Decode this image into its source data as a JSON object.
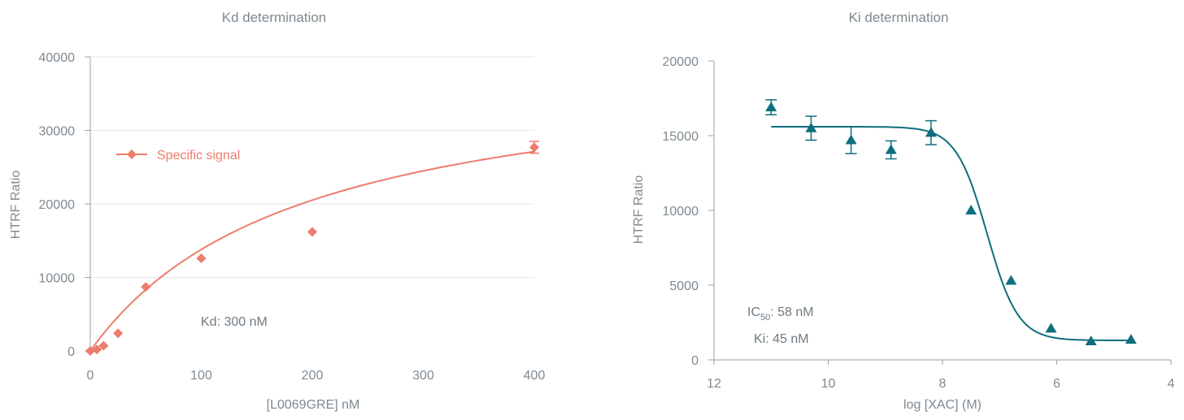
{
  "chart_data": [
    {
      "type": "scatter",
      "title": "Kd determination",
      "xlabel": "[L0069GRE] nM",
      "ylabel": "HTRF Ratio",
      "xlim": [
        0,
        400
      ],
      "ylim": [
        0,
        40000
      ],
      "xticks": [
        0,
        100,
        200,
        300,
        400
      ],
      "yticks": [
        0,
        10000,
        20000,
        30000,
        40000
      ],
      "grid": "horizontal",
      "legend_position": "upper-left",
      "color": "#ec7c6c",
      "series": [
        {
          "name": "Specific signal",
          "x": [
            0,
            6,
            12,
            25,
            50,
            100,
            200,
            400
          ],
          "y": [
            0,
            200,
            700,
            2400,
            8700,
            12600,
            16200,
            27700
          ],
          "error": [
            0,
            0,
            0,
            0,
            0,
            0,
            0,
            800
          ],
          "fit": "one-site saturation"
        }
      ],
      "annotations": [
        {
          "text": "Kd: 300 nM"
        }
      ]
    },
    {
      "type": "scatter",
      "title": "Ki determination",
      "xlabel": "log [XAC] (M)",
      "ylabel": "HTRF Ratio",
      "xlim": [
        12,
        4
      ],
      "ylim": [
        0,
        20000
      ],
      "xticks": [
        12,
        10,
        8,
        6,
        4
      ],
      "yticks": [
        0,
        5000,
        10000,
        15000,
        20000
      ],
      "grid": "none",
      "color": "#0e6e7e",
      "series": [
        {
          "x": [
            11.0,
            10.3,
            9.6,
            8.9,
            8.2,
            7.5,
            6.8,
            6.1,
            5.4,
            4.7
          ],
          "y": [
            16900,
            15500,
            14700,
            14050,
            15200,
            10000,
            5300,
            2100,
            1250,
            1350
          ],
          "error": [
            500,
            800,
            900,
            600,
            800,
            0,
            0,
            0,
            0,
            0
          ],
          "fit": "sigmoidal dose-response"
        }
      ],
      "annotations": [
        {
          "label": "IC",
          "subscript": "50",
          "value": ": 58 nM"
        },
        {
          "text": "Ki: 45 nM"
        }
      ]
    }
  ]
}
